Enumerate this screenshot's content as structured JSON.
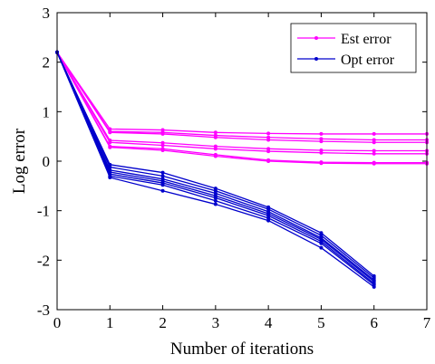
{
  "chart_data": {
    "type": "line",
    "xlabel": "Number of iterations",
    "ylabel": "Log error",
    "xlim": [
      0,
      7
    ],
    "ylim": [
      -3,
      3
    ],
    "xticks": [
      "0",
      "1",
      "2",
      "3",
      "4",
      "5",
      "6",
      "7"
    ],
    "yticks": [
      "-3",
      "-2",
      "-1",
      "0",
      "1",
      "2",
      "3"
    ],
    "grid": false,
    "legend_position": "top-right",
    "legend": [
      {
        "label": "Est error",
        "color": "#ff00ff"
      },
      {
        "label": "Opt error",
        "color": "#0000cc"
      }
    ],
    "groups": [
      {
        "name": "Est error",
        "color": "#ff00ff",
        "x": [
          0,
          1,
          2,
          3,
          4,
          5,
          6,
          7
        ],
        "runs": [
          [
            2.2,
            0.65,
            0.63,
            0.58,
            0.56,
            0.55,
            0.55,
            0.55
          ],
          [
            2.2,
            0.6,
            0.58,
            0.52,
            0.48,
            0.45,
            0.43,
            0.43
          ],
          [
            2.2,
            0.58,
            0.55,
            0.48,
            0.43,
            0.4,
            0.38,
            0.38
          ],
          [
            2.2,
            0.42,
            0.37,
            0.3,
            0.25,
            0.22,
            0.21,
            0.21
          ],
          [
            2.2,
            0.38,
            0.32,
            0.25,
            0.2,
            0.17,
            0.15,
            0.15
          ],
          [
            2.2,
            0.3,
            0.25,
            0.13,
            0.02,
            -0.02,
            -0.03,
            -0.03
          ],
          [
            2.2,
            0.28,
            0.22,
            0.1,
            0.0,
            -0.04,
            -0.05,
            -0.05
          ]
        ]
      },
      {
        "name": "Opt error",
        "color": "#0000cc",
        "x": [
          0,
          1,
          2,
          3,
          4,
          5,
          6
        ],
        "runs": [
          [
            2.2,
            -0.07,
            -0.23,
            -0.55,
            -0.93,
            -1.45,
            -2.32
          ],
          [
            2.2,
            -0.12,
            -0.3,
            -0.6,
            -0.97,
            -1.5,
            -2.36
          ],
          [
            2.2,
            -0.18,
            -0.36,
            -0.65,
            -1.02,
            -1.55,
            -2.4
          ],
          [
            2.2,
            -0.22,
            -0.4,
            -0.7,
            -1.06,
            -1.58,
            -2.43
          ],
          [
            2.2,
            -0.26,
            -0.44,
            -0.74,
            -1.1,
            -1.62,
            -2.47
          ],
          [
            2.2,
            -0.3,
            -0.48,
            -0.8,
            -1.15,
            -1.66,
            -2.5
          ],
          [
            2.2,
            -0.33,
            -0.6,
            -0.87,
            -1.2,
            -1.75,
            -2.54
          ]
        ]
      }
    ]
  }
}
